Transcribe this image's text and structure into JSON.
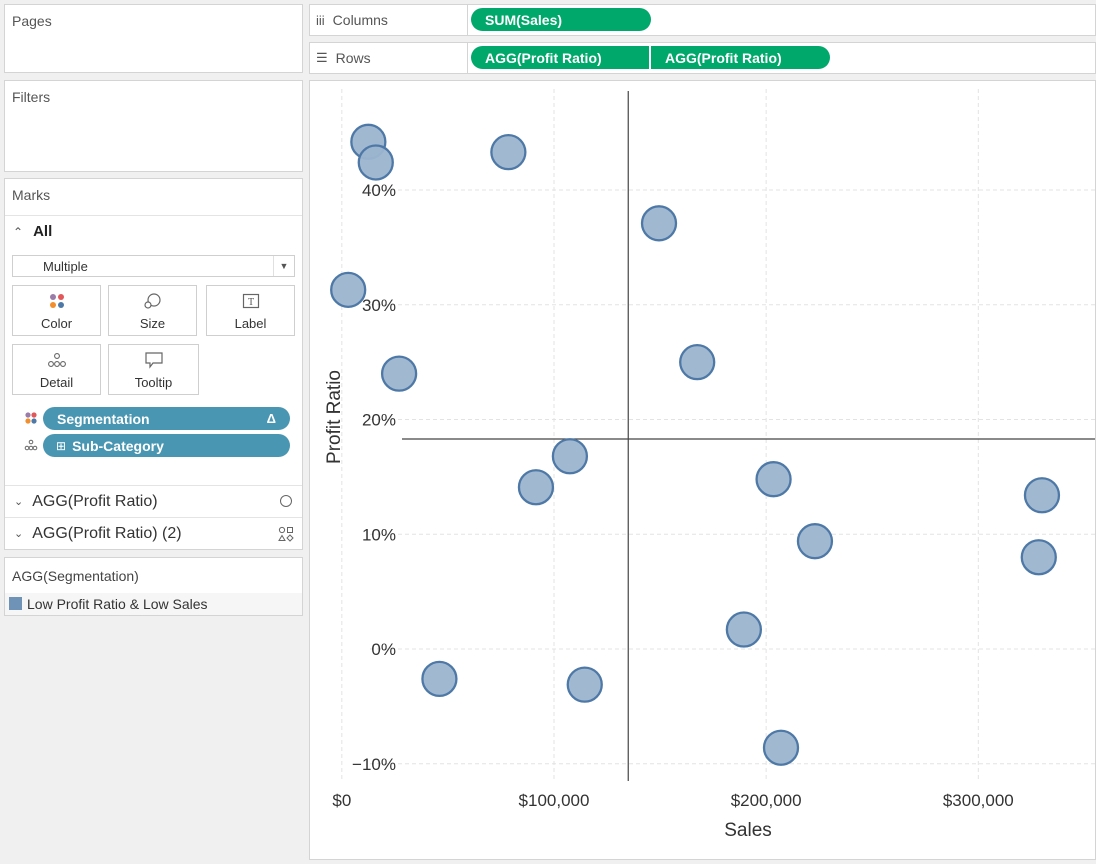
{
  "side": {
    "pages_title": "Pages",
    "filters_title": "Filters",
    "marks_title": "Marks",
    "all_label": "All",
    "mark_type": "Multiple",
    "buttons": {
      "color": "Color",
      "size": "Size",
      "label": "Label",
      "detail": "Detail",
      "tooltip": "Tooltip"
    },
    "fields": [
      {
        "label": "Segmentation",
        "icon": "color-dots-icon",
        "suffix": "Δ"
      },
      {
        "label": "Sub-Category",
        "icon": "detail-dots-icon",
        "prefix": "⊞"
      }
    ],
    "layers": [
      {
        "label": "AGG(Profit Ratio)",
        "icon": "circle-mark-icon"
      },
      {
        "label": "AGG(Profit Ratio) (2)",
        "icon": "shapes-mark-icon"
      }
    ],
    "legend_title": "AGG(Segmentation)",
    "legend_item": "Low Profit Ratio & Low Sales",
    "legend_color": "#6f93b6"
  },
  "shelves": {
    "columns_label": "Columns",
    "rows_label": "Rows",
    "columns_pills": [
      "SUM(Sales)"
    ],
    "rows_pills": [
      "AGG(Profit Ratio)",
      "AGG(Profit Ratio)"
    ],
    "pill_color": "#00a86b"
  },
  "chart_data": {
    "type": "scatter",
    "xlabel": "Sales",
    "ylabel": "Profit Ratio",
    "xlim": [
      -15000,
      355000
    ],
    "ylim": [
      -0.115,
      0.495
    ],
    "xticks": [
      {
        "value": 0,
        "label": "$0"
      },
      {
        "value": 100000,
        "label": "$100,000"
      },
      {
        "value": 200000,
        "label": "$200,000"
      },
      {
        "value": 300000,
        "label": "$300,000"
      }
    ],
    "yticks": [
      {
        "value": -0.1,
        "label": "−10%"
      },
      {
        "value": 0,
        "label": "0%"
      },
      {
        "value": 0.1,
        "label": "10%"
      },
      {
        "value": 0.2,
        "label": "20%"
      },
      {
        "value": 0.3,
        "label": "30%"
      },
      {
        "value": 0.4,
        "label": "40%"
      }
    ],
    "reference_lines": {
      "x": 135000,
      "y": 0.183
    },
    "marker_color": "#9cb4cf",
    "marker_stroke": "#4e79a7",
    "points": [
      {
        "x": 12500,
        "y": 0.442
      },
      {
        "x": 16000,
        "y": 0.424
      },
      {
        "x": 78500,
        "y": 0.433
      },
      {
        "x": 149500,
        "y": 0.371
      },
      {
        "x": 3000,
        "y": 0.313
      },
      {
        "x": 167500,
        "y": 0.25
      },
      {
        "x": 27000,
        "y": 0.24
      },
      {
        "x": 107500,
        "y": 0.168
      },
      {
        "x": 91500,
        "y": 0.141
      },
      {
        "x": 203500,
        "y": 0.148
      },
      {
        "x": 223000,
        "y": 0.094
      },
      {
        "x": 330000,
        "y": 0.134
      },
      {
        "x": 328500,
        "y": 0.08
      },
      {
        "x": 189500,
        "y": 0.017
      },
      {
        "x": 46000,
        "y": -0.026
      },
      {
        "x": 114500,
        "y": -0.031
      },
      {
        "x": 207000,
        "y": -0.086
      }
    ]
  }
}
